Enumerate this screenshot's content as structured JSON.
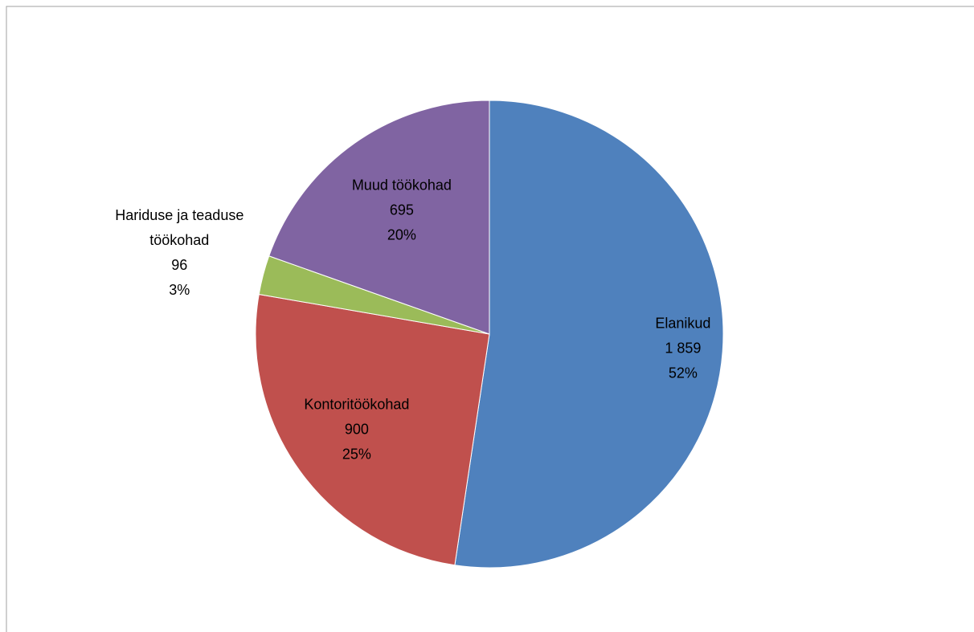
{
  "chart_data": {
    "type": "pie",
    "categories": [
      "Elanikud",
      "Kontoritöökohad",
      "Hariduse ja teaduse töökohad",
      "Muud töökohad"
    ],
    "values": [
      1859,
      900,
      96,
      695
    ],
    "value_labels": [
      "1 859",
      "900",
      "96",
      "695"
    ],
    "percent_labels": [
      "52%",
      "25%",
      "3%",
      "20%"
    ],
    "colors": [
      "#4f81bd",
      "#c0504d",
      "#9bbb59",
      "#8064a2"
    ]
  }
}
